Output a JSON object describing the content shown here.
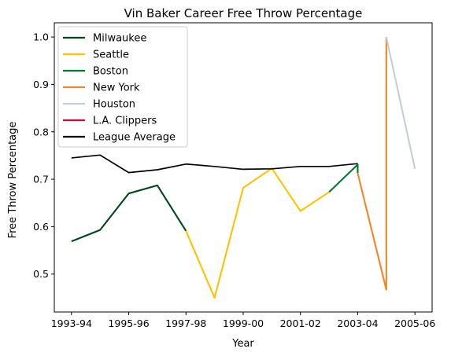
{
  "chart_data": {
    "type": "line",
    "title": "Vin Baker Career Free Throw Percentage",
    "xlabel": "Year",
    "ylabel": "Free Throw Percentage",
    "x_tick_labels": [
      "1993-94",
      "1995-96",
      "1997-98",
      "1999-00",
      "2001-02",
      "2003-04",
      "2005-06"
    ],
    "x_tick_index": [
      0,
      2,
      4,
      6,
      8,
      10,
      12
    ],
    "y_ticks": [
      "0.5",
      "0.6",
      "0.7",
      "0.8",
      "0.9",
      "1.0"
    ],
    "xlim": [
      -0.6,
      12.6
    ],
    "ylim": [
      0.42,
      1.03
    ],
    "grid": false,
    "legend_position": "upper left",
    "series": [
      {
        "name": "Milwaukee",
        "color": "#00471b",
        "points": [
          [
            0,
            0.569
          ],
          [
            1,
            0.593
          ],
          [
            2,
            0.67
          ],
          [
            3,
            0.687
          ],
          [
            4,
            0.591
          ]
        ]
      },
      {
        "name": "Seattle",
        "color": "#ffc200",
        "points": [
          [
            4,
            0.591
          ],
          [
            5,
            0.45
          ],
          [
            6,
            0.682
          ],
          [
            7,
            0.723
          ],
          [
            8,
            0.633
          ],
          [
            9,
            0.673
          ]
        ]
      },
      {
        "name": "Boston",
        "color": "#007a33",
        "points": [
          [
            9,
            0.673
          ],
          [
            10,
            0.731
          ],
          [
            10,
            0.713
          ]
        ]
      },
      {
        "name": "New York",
        "color": "#f58426",
        "points": [
          [
            10,
            0.713
          ],
          [
            11,
            0.467
          ],
          [
            11,
            1.0
          ]
        ]
      },
      {
        "name": "Houston",
        "color": "#c4ced4",
        "points": [
          [
            11,
            1.0
          ],
          [
            12,
            0.722
          ]
        ]
      },
      {
        "name": "L.A. Clippers",
        "color": "#c8102e",
        "points": []
      },
      {
        "name": "League Average",
        "color": "#000000",
        "points": [
          [
            0,
            0.745
          ],
          [
            1,
            0.751
          ],
          [
            2,
            0.714
          ],
          [
            3,
            0.72
          ],
          [
            4,
            0.732
          ],
          [
            5,
            0.727
          ],
          [
            6,
            0.721
          ],
          [
            7,
            0.722
          ],
          [
            8,
            0.727
          ],
          [
            9,
            0.727
          ],
          [
            10,
            0.733
          ]
        ]
      }
    ]
  }
}
